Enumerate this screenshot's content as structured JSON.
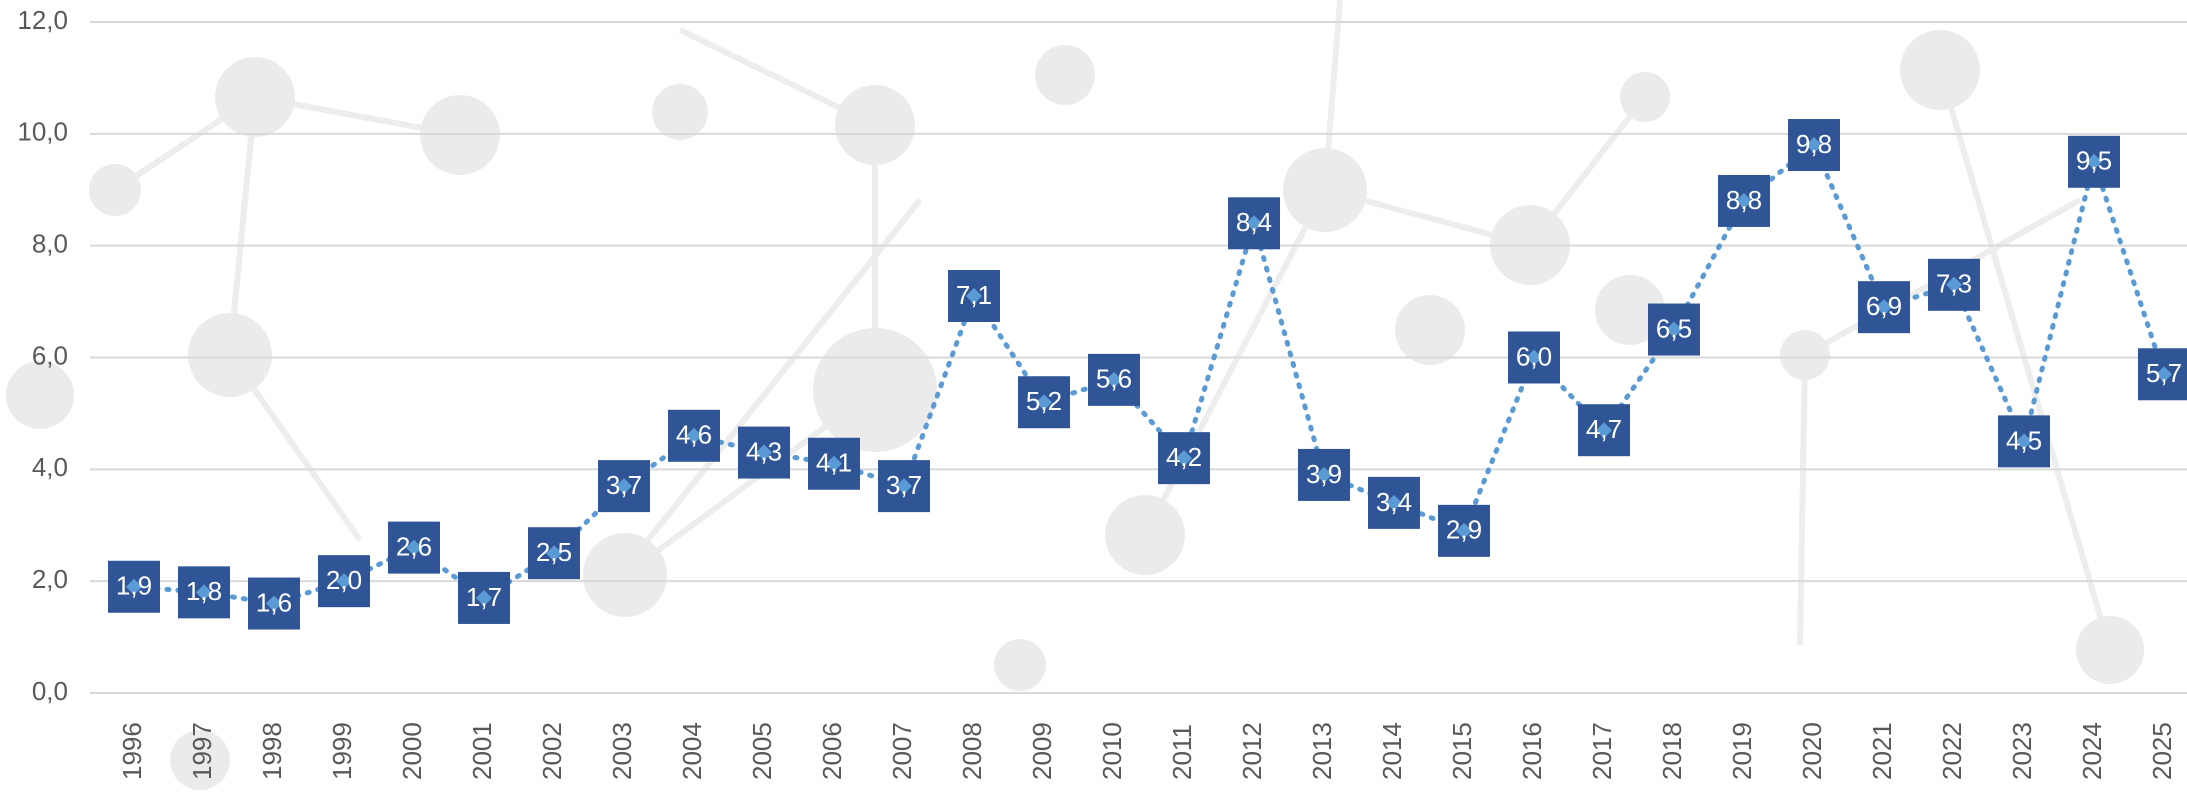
{
  "chart_data": {
    "type": "line",
    "categories": [
      "1996",
      "1997",
      "1998",
      "1999",
      "2000",
      "2001",
      "2002",
      "2003",
      "2004",
      "2005",
      "2006",
      "2007",
      "2008",
      "2009",
      "2010",
      "2011",
      "2012",
      "2013",
      "2014",
      "2015",
      "2016",
      "2017",
      "2018",
      "2019",
      "2020",
      "2021",
      "2022",
      "2023",
      "2024",
      "2025"
    ],
    "values": [
      1.9,
      1.8,
      1.6,
      2.0,
      2.6,
      1.7,
      2.5,
      3.7,
      4.6,
      4.3,
      4.1,
      3.7,
      7.1,
      5.2,
      5.6,
      4.2,
      8.4,
      3.9,
      3.4,
      2.9,
      6.0,
      4.7,
      6.5,
      8.8,
      9.8,
      6.9,
      7.3,
      4.5,
      9.5,
      5.7
    ],
    "value_labels": [
      "1,9",
      "1,8",
      "1,6",
      "2,0",
      "2,6",
      "1,7",
      "2,5",
      "3,7",
      "4,6",
      "4,3",
      "4,1",
      "3,7",
      "7,1",
      "5,2",
      "5,6",
      "4,2",
      "8,4",
      "3,9",
      "3,4",
      "2,9",
      "6,0",
      "4,7",
      "6,5",
      "8,8",
      "9,8",
      "6,9",
      "7,3",
      "4,5",
      "9,5",
      "5,7"
    ],
    "color": "#5b9bd5",
    "label_color": "#2f5597",
    "ylim": [
      0,
      12
    ],
    "yticks": [
      {
        "value": 0,
        "label": "0,0"
      },
      {
        "value": 2,
        "label": "2,0"
      },
      {
        "value": 4,
        "label": "4,0"
      },
      {
        "value": 6,
        "label": "6,0"
      },
      {
        "value": 8,
        "label": "8,0"
      },
      {
        "value": 10,
        "label": "10,0"
      },
      {
        "value": 12,
        "label": "12,0"
      }
    ],
    "grid": true
  }
}
